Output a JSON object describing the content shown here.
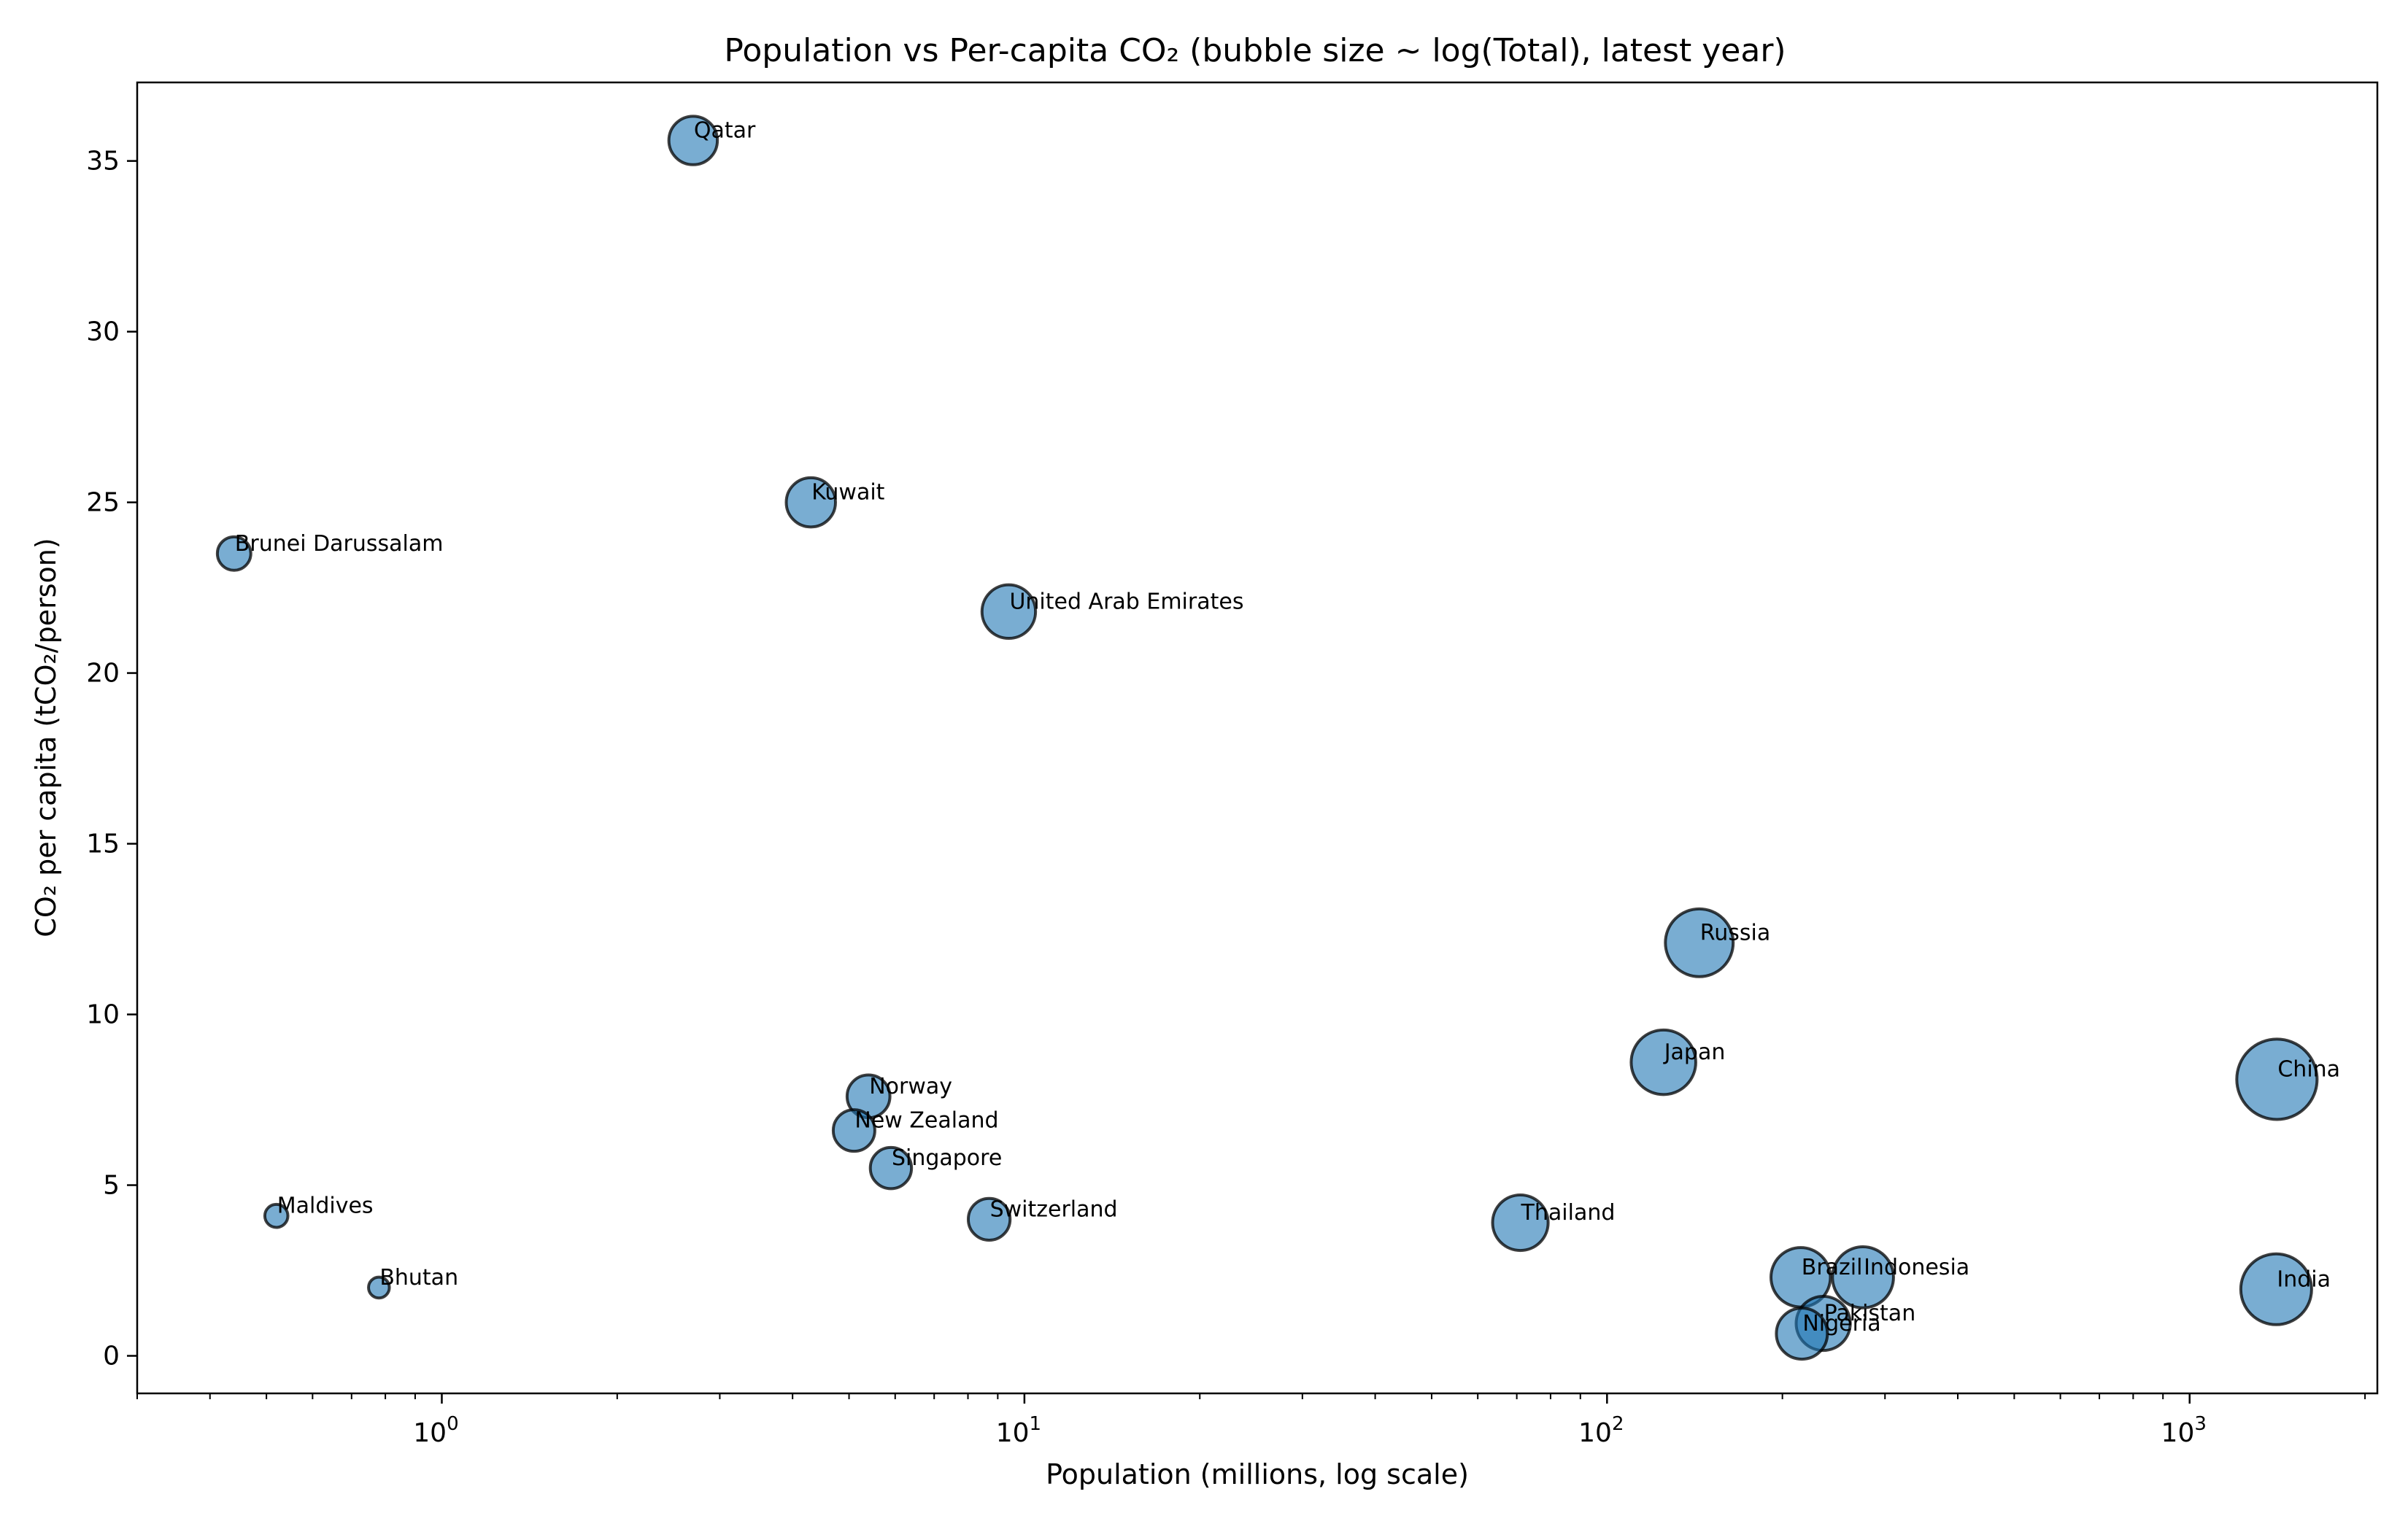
{
  "chart_data": {
    "type": "scatter",
    "title": "Population vs Per-capita CO₂ (bubble size ~ log(Total), latest year)",
    "xlabel": "Population (millions, log scale)",
    "ylabel": "CO₂ per capita (tCO₂/person)",
    "x_scale": "log",
    "xlim": [
      0.3,
      2100
    ],
    "ylim": [
      -1.1,
      37.3
    ],
    "x_ticks": [
      {
        "value": 1,
        "base": "10",
        "exp": "0"
      },
      {
        "value": 10,
        "base": "10",
        "exp": "1"
      },
      {
        "value": 100,
        "base": "10",
        "exp": "2"
      },
      {
        "value": 1000,
        "base": "10",
        "exp": "3"
      }
    ],
    "y_ticks": [
      "0",
      "5",
      "10",
      "15",
      "20",
      "25",
      "30",
      "35"
    ],
    "grid": false,
    "legend": "none",
    "colors": {
      "bubble_fill": "#1f77b4",
      "bubble_edge": "#000000"
    },
    "points": [
      {
        "name": "Qatar",
        "x": 2.7,
        "y": 35.6,
        "total_mt": 96
      },
      {
        "name": "Kuwait",
        "x": 4.3,
        "y": 25.0,
        "total_mt": 107
      },
      {
        "name": "Brunei Darussalam",
        "x": 0.44,
        "y": 23.5,
        "total_mt": 10
      },
      {
        "name": "United Arab Emirates",
        "x": 9.4,
        "y": 21.8,
        "total_mt": 205
      },
      {
        "name": "Russia",
        "x": 144,
        "y": 12.1,
        "total_mt": 1742
      },
      {
        "name": "Japan",
        "x": 125,
        "y": 8.6,
        "total_mt": 1075
      },
      {
        "name": "China",
        "x": 1412,
        "y": 8.1,
        "total_mt": 11440
      },
      {
        "name": "Norway",
        "x": 5.4,
        "y": 7.6,
        "total_mt": 41
      },
      {
        "name": "New Zealand",
        "x": 5.1,
        "y": 6.6,
        "total_mt": 34
      },
      {
        "name": "Singapore",
        "x": 5.9,
        "y": 5.5,
        "total_mt": 32
      },
      {
        "name": "Maldives",
        "x": 0.52,
        "y": 4.1,
        "total_mt": 2.1
      },
      {
        "name": "Switzerland",
        "x": 8.7,
        "y": 4.0,
        "total_mt": 35
      },
      {
        "name": "Thailand",
        "x": 71,
        "y": 3.9,
        "total_mt": 277
      },
      {
        "name": "Brazil",
        "x": 215,
        "y": 2.3,
        "total_mt": 495
      },
      {
        "name": "Indonesia",
        "x": 275,
        "y": 2.3,
        "total_mt": 633
      },
      {
        "name": "India",
        "x": 1408,
        "y": 1.95,
        "total_mt": 2746
      },
      {
        "name": "Bhutan",
        "x": 0.78,
        "y": 2.0,
        "total_mt": 1.5
      },
      {
        "name": "Pakistan",
        "x": 235,
        "y": 0.95,
        "total_mt": 223
      },
      {
        "name": "Nigeria",
        "x": 216,
        "y": 0.65,
        "total_mt": 140
      }
    ]
  }
}
